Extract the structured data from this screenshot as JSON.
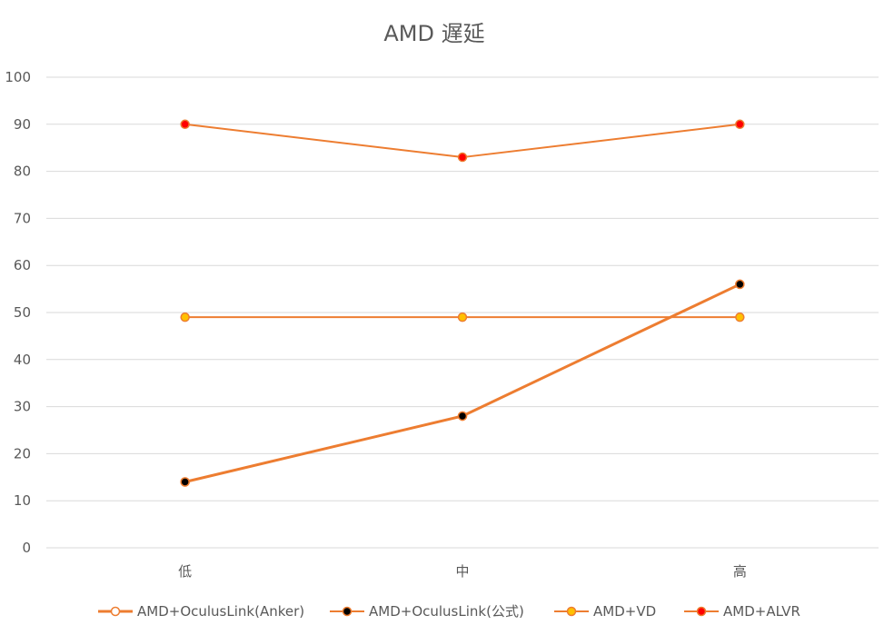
{
  "chart_data": {
    "type": "line",
    "title": "AMD 遅延",
    "xlabel": "",
    "ylabel": "",
    "categories": [
      "低",
      "中",
      "高"
    ],
    "ylim": [
      0,
      100
    ],
    "yticks": [
      0,
      10,
      20,
      30,
      40,
      50,
      60,
      70,
      80,
      90,
      100
    ],
    "grid": true,
    "legend_position": "bottom",
    "series": [
      {
        "name": "AMD+OculusLink(Anker)",
        "values": [
          14,
          28,
          56
        ],
        "line_color": "#ED7D31",
        "marker_fill": "#ffffff",
        "marker_stroke": "#ED7D31",
        "line_width": 3
      },
      {
        "name": "AMD+OculusLink(公式)",
        "values": [
          14,
          28,
          56
        ],
        "line_color": "#ED7D31",
        "marker_fill": "#000000",
        "marker_stroke": "#ED7D31",
        "line_width": 2
      },
      {
        "name": "AMD+VD",
        "values": [
          49,
          49,
          49
        ],
        "line_color": "#ED7D31",
        "marker_fill": "#FFC000",
        "marker_stroke": "#ED7D31",
        "line_width": 2
      },
      {
        "name": "AMD+ALVR",
        "values": [
          90,
          83,
          90
        ],
        "line_color": "#ED7D31",
        "marker_fill": "#FF0000",
        "marker_stroke": "#ED7D31",
        "line_width": 2
      }
    ]
  }
}
